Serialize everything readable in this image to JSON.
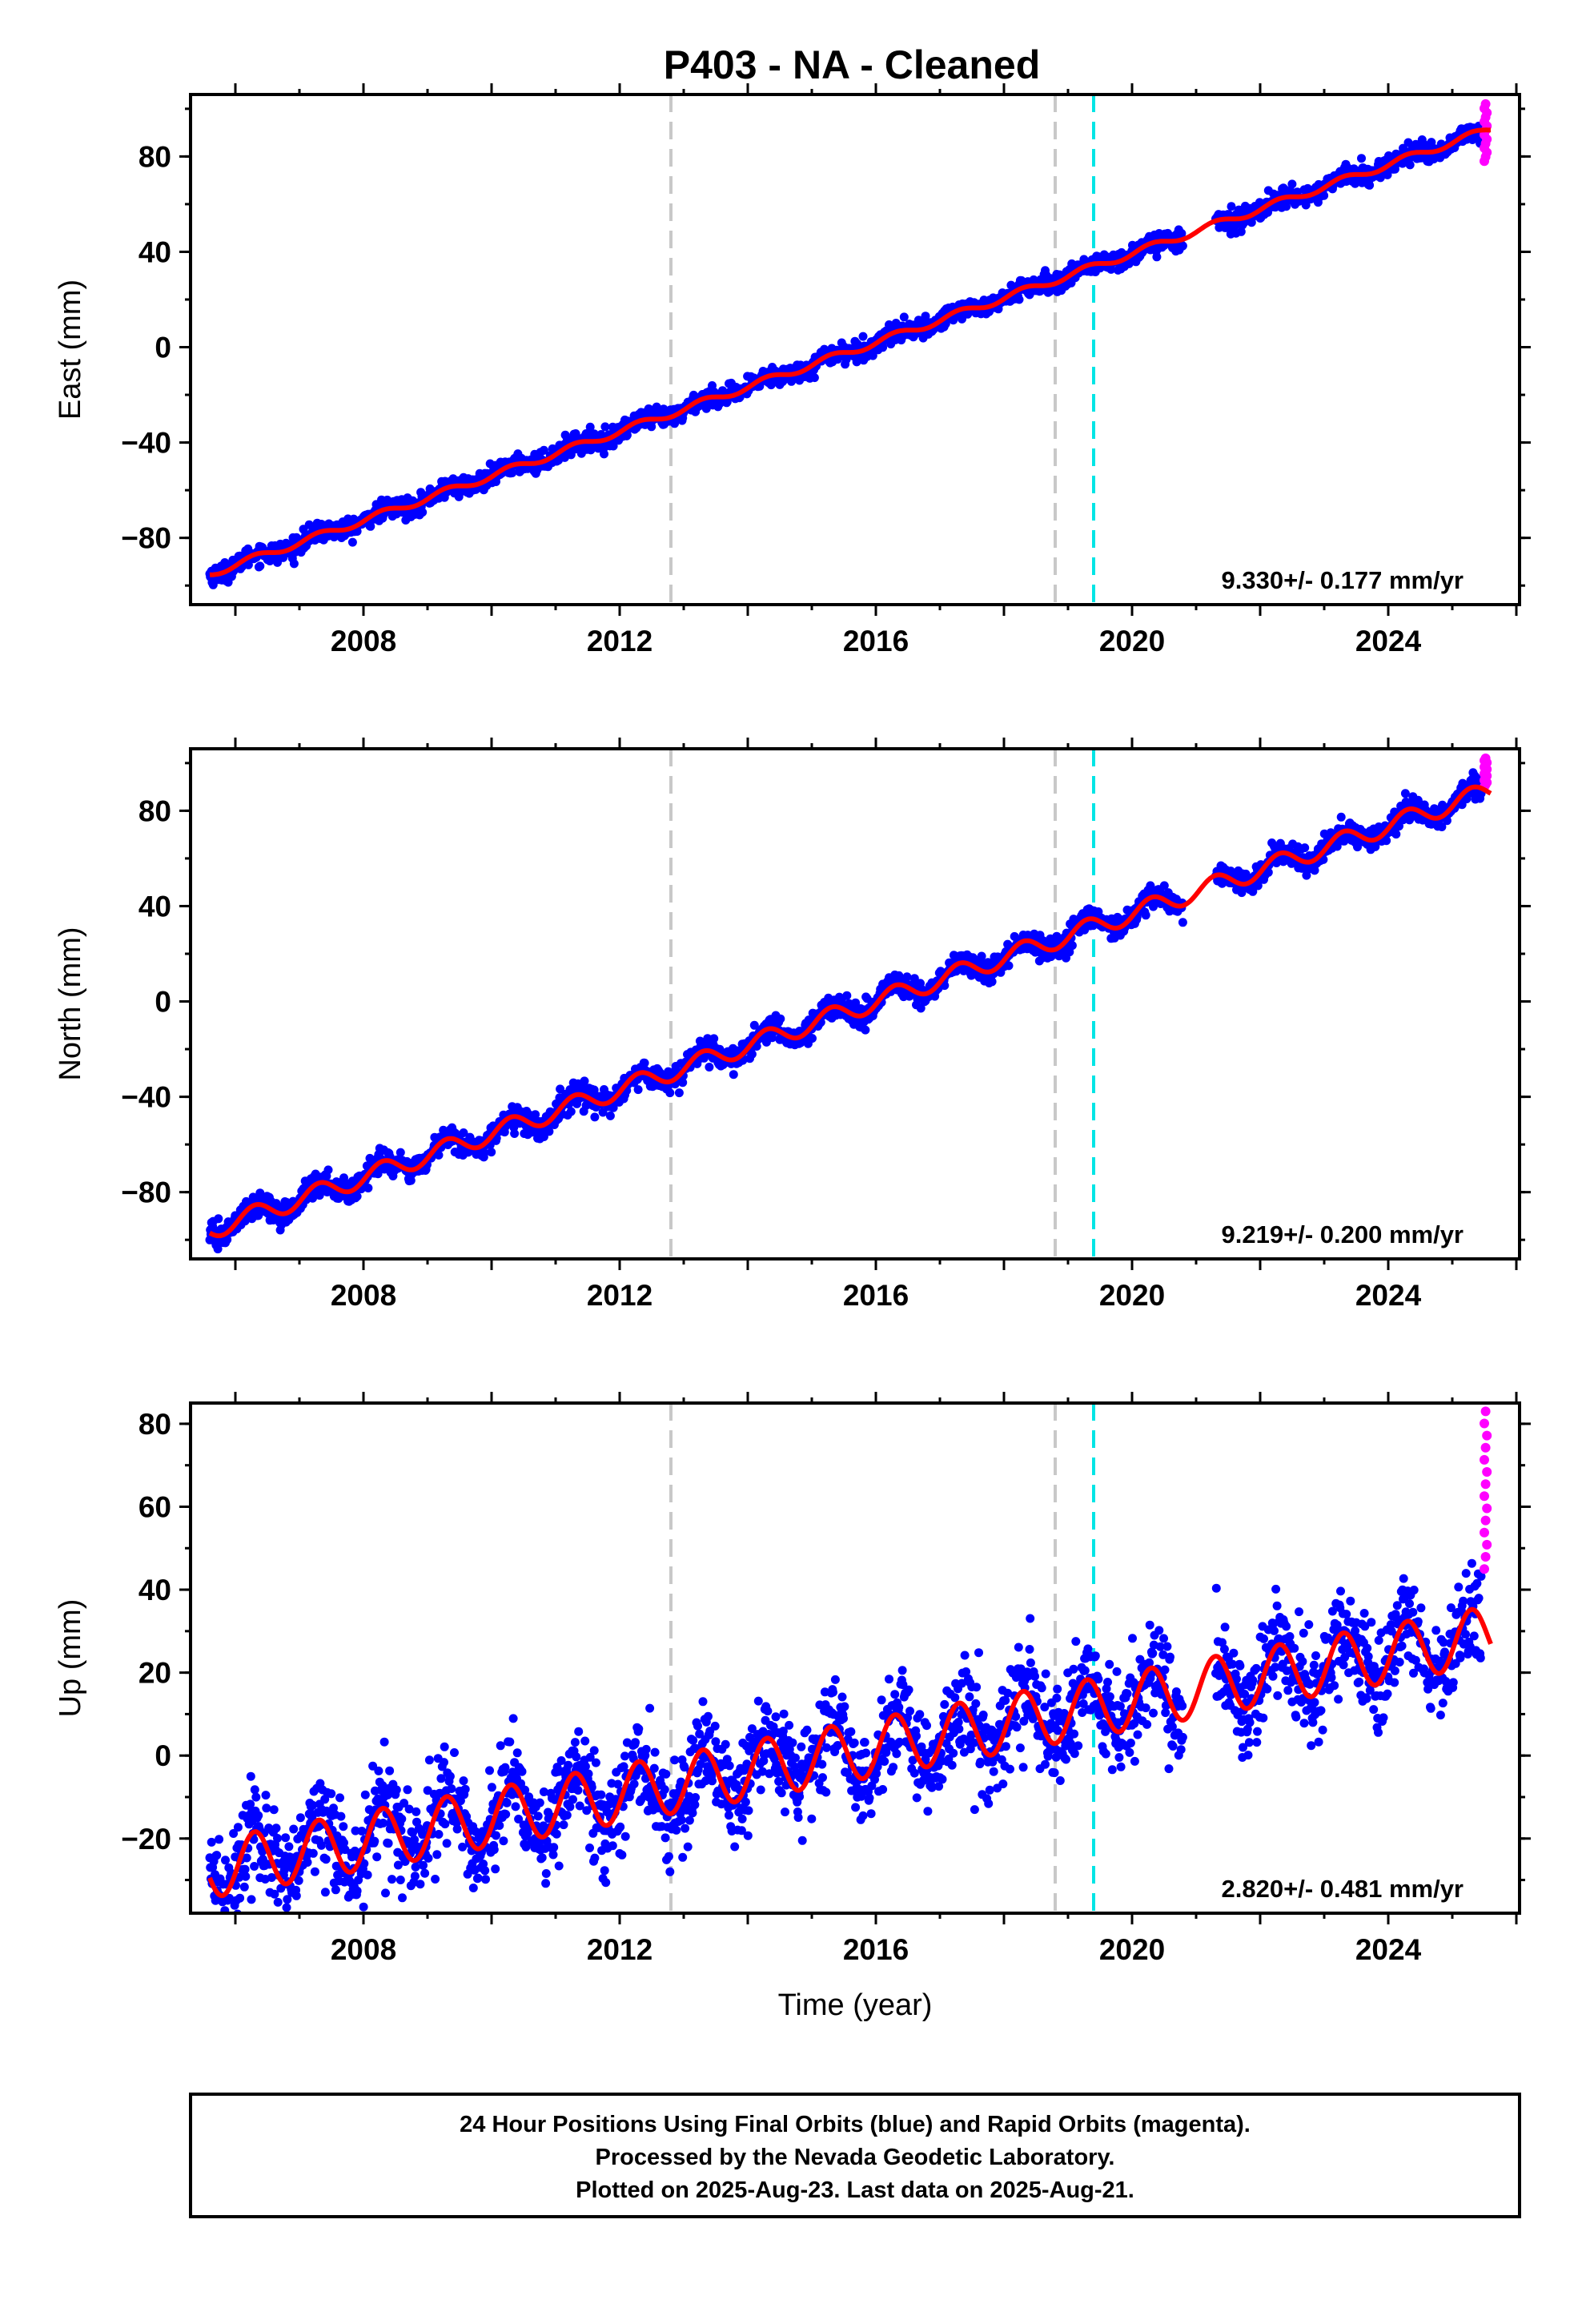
{
  "title": "P403  - NA - Cleaned",
  "colors": {
    "final": "#0000ff",
    "rapid": "#ff00ff",
    "model": "#ff0000",
    "event_gray": "#c8c8c8",
    "event_cyan": "#00e5e5"
  },
  "chart_data": [
    {
      "type": "scatter",
      "component": "East",
      "ylabel": "East (mm)",
      "xlabel": "",
      "xlim": [
        2005.3,
        2026.05
      ],
      "ylim": [
        -108,
        106
      ],
      "yticks": [
        -80,
        -40,
        0,
        40,
        80
      ],
      "xticks": [
        2008,
        2012,
        2016,
        2020,
        2024
      ],
      "rate_text": "9.330+/- 0.177 mm/yr",
      "rate": 9.33,
      "value_at_2016": 2,
      "annual_amp": 1.5,
      "noise": 2,
      "rapid_range": [
        78,
        102
      ],
      "events": [
        {
          "x": 2012.8,
          "color": "gray"
        },
        {
          "x": 2018.8,
          "color": "gray"
        },
        {
          "x": 2019.4,
          "color": "cyan"
        }
      ],
      "gaps": [
        [
          2020.8,
          2021.3
        ]
      ]
    },
    {
      "type": "scatter",
      "component": "North",
      "ylabel": "North (mm)",
      "xlabel": "",
      "xlim": [
        2005.3,
        2026.05
      ],
      "ylim": [
        -108,
        106
      ],
      "yticks": [
        -80,
        -40,
        0,
        40,
        80
      ],
      "xticks": [
        2008,
        2012,
        2016,
        2020,
        2024
      ],
      "rate_text": "9.219+/- 0.200 mm/yr",
      "rate": 9.219,
      "value_at_2016": 0,
      "annual_amp": 4,
      "noise": 2.5,
      "rapid_range": [
        90,
        102
      ],
      "events": [
        {
          "x": 2012.8,
          "color": "gray"
        },
        {
          "x": 2018.8,
          "color": "gray"
        },
        {
          "x": 2019.4,
          "color": "cyan"
        }
      ],
      "gaps": [
        [
          2020.8,
          2021.3
        ]
      ]
    },
    {
      "type": "scatter",
      "component": "Up",
      "ylabel": "Up (mm)",
      "xlabel": "Time (year)",
      "xlim": [
        2005.3,
        2026.05
      ],
      "ylim": [
        -38,
        85
      ],
      "yticks": [
        -20,
        0,
        20,
        40,
        60,
        80
      ],
      "xticks": [
        2008,
        2012,
        2016,
        2020,
        2024
      ],
      "rate_text": "2.820+/- 0.481 mm/yr",
      "rate": 2.82,
      "value_at_2016": 2,
      "annual_amp": 7,
      "noise": 6,
      "rapid_range": [
        45,
        83
      ],
      "events": [
        {
          "x": 2012.8,
          "color": "gray"
        },
        {
          "x": 2018.8,
          "color": "gray"
        },
        {
          "x": 2019.4,
          "color": "cyan"
        }
      ],
      "gaps": [
        [
          2020.8,
          2021.3
        ]
      ]
    }
  ],
  "footer": {
    "line1": "24 Hour Positions Using Final Orbits (blue) and Rapid Orbits (magenta).",
    "line2": "Processed by the Nevada Geodetic Laboratory.",
    "line3": "Plotted on 2025-Aug-23. Last data on 2025-Aug-21."
  }
}
